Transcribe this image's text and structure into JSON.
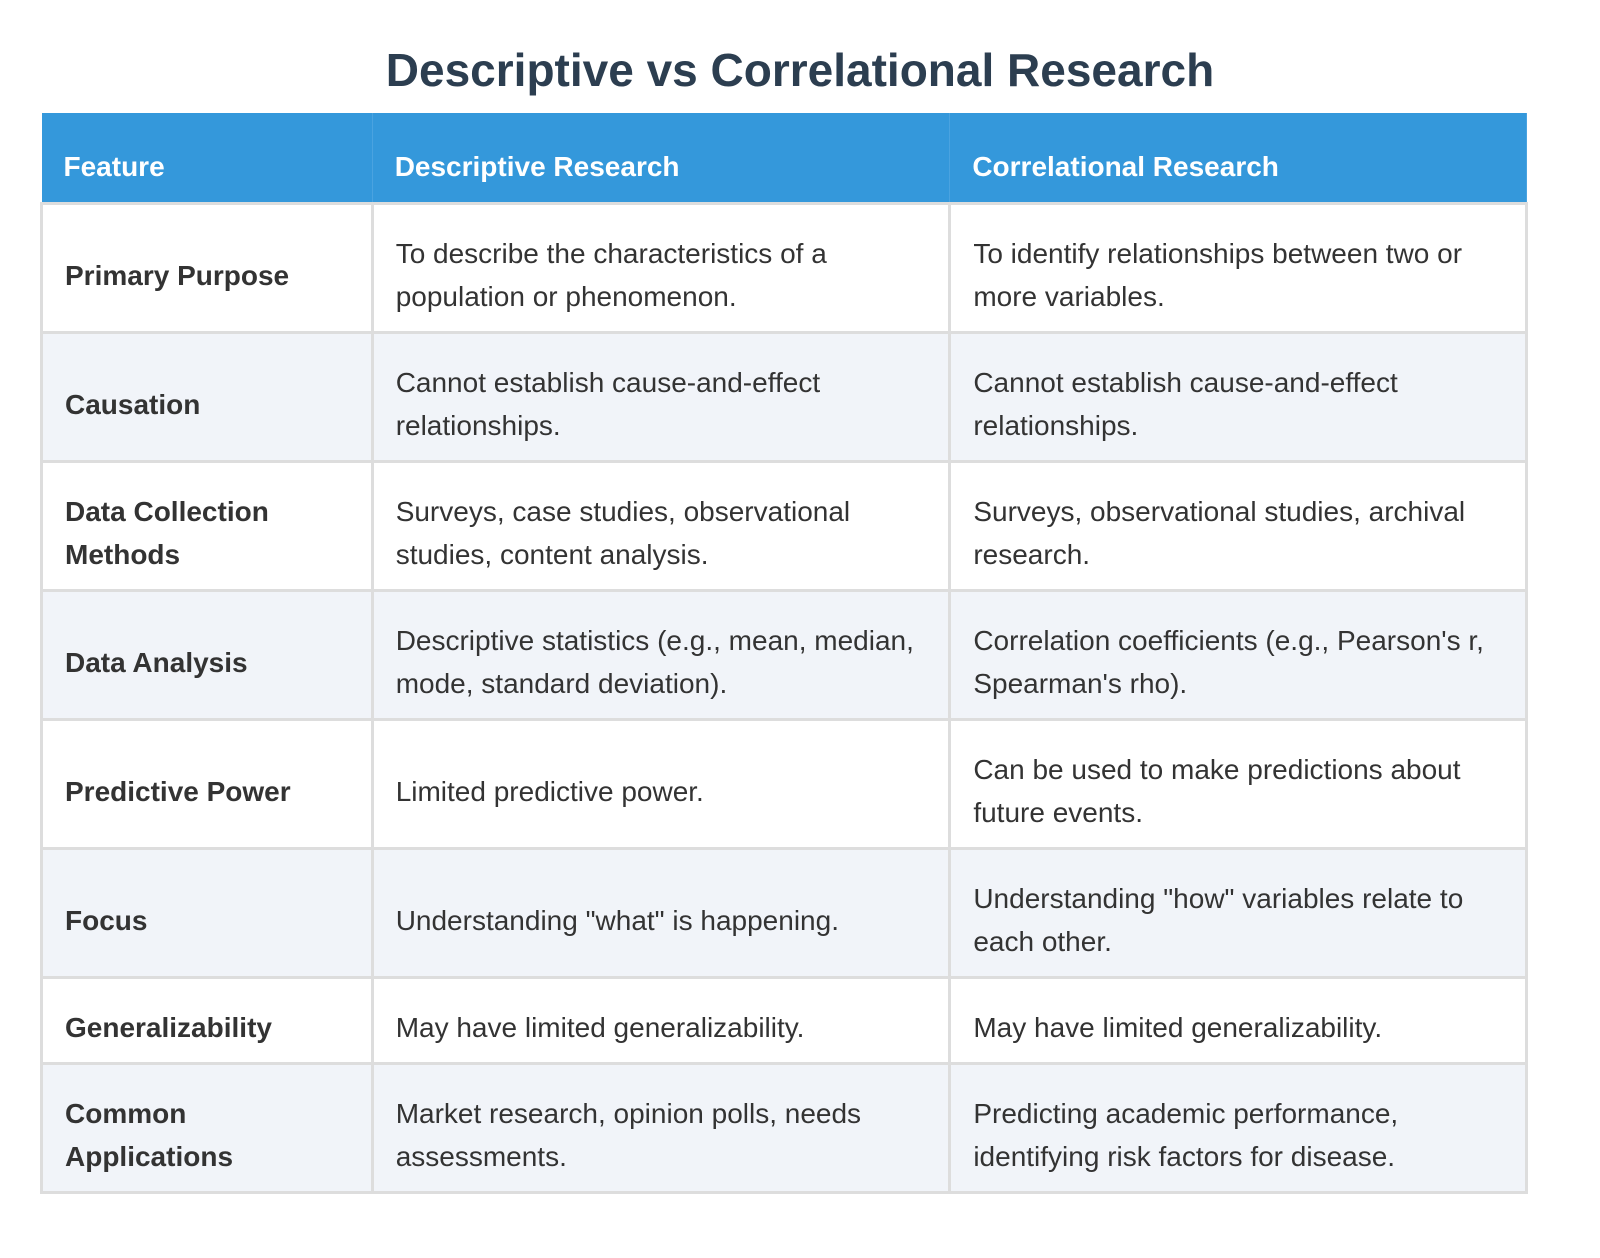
{
  "title": "Descriptive vs Correlational Research",
  "headers": [
    "Feature",
    "Descriptive Research",
    "Correlational Research"
  ],
  "rows": [
    {
      "feature": "Primary Purpose",
      "descriptive": "To describe the characteristics of a population or phenomenon.",
      "correlational": "To identify relationships between two or more variables."
    },
    {
      "feature": "Causation",
      "descriptive": "Cannot establish cause-and-effect relationships.",
      "correlational": "Cannot establish cause-and-effect relationships."
    },
    {
      "feature": "Data Collection Methods",
      "descriptive": "Surveys, case studies, observational studies, content analysis.",
      "correlational": "Surveys, observational studies, archival research."
    },
    {
      "feature": "Data Analysis",
      "descriptive": "Descriptive statistics (e.g., mean, median, mode, standard deviation).",
      "correlational": "Correlation coefficients (e.g., Pearson's r, Spearman's rho)."
    },
    {
      "feature": "Predictive Power",
      "descriptive": "Limited predictive power.",
      "correlational": "Can be used to make predictions about future events."
    },
    {
      "feature": "Focus",
      "descriptive": "Understanding \"what\" is happening.",
      "correlational": "Understanding \"how\" variables relate to each other."
    },
    {
      "feature": "Generalizability",
      "descriptive": "May have limited generalizability.",
      "correlational": "May have limited generalizability."
    },
    {
      "feature": "Common Applications",
      "descriptive": "Market research, opinion polls, needs assessments.",
      "correlational": "Predicting academic performance, identifying risk factors for disease."
    }
  ],
  "colors": {
    "header": "#3498db",
    "title": "#2c3e50",
    "alt_row": "#f1f4f9",
    "border": "#dddddd"
  }
}
